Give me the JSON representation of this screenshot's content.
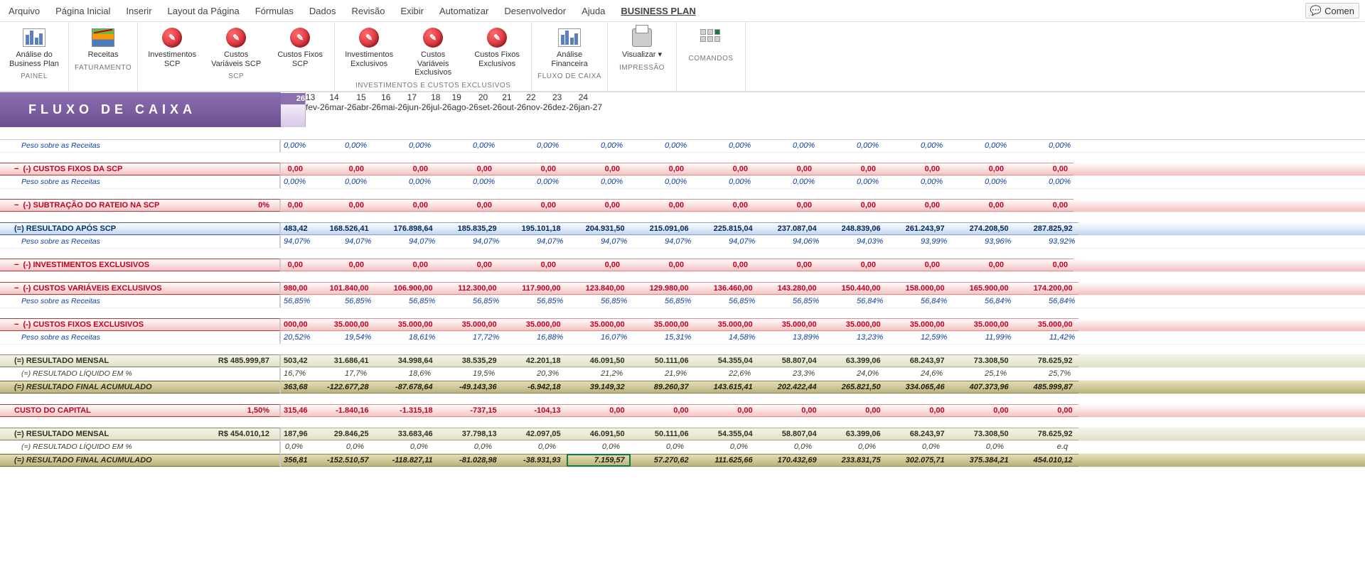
{
  "menu": {
    "items": [
      "Arquivo",
      "Página Inicial",
      "Inserir",
      "Layout da Página",
      "Fórmulas",
      "Dados",
      "Revisão",
      "Exibir",
      "Automatizar",
      "Desenvolvedor",
      "Ajuda",
      "BUSINESS PLAN"
    ],
    "active_index": 11,
    "comment_btn": "Comen"
  },
  "ribbon": {
    "groups": [
      {
        "label": "PAINEL",
        "buttons": [
          {
            "label": "Análise do Business Plan",
            "icon": "analyze-icon"
          }
        ]
      },
      {
        "label": "FATURAMENTO",
        "buttons": [
          {
            "label": "Receitas",
            "icon": "chart-icon"
          }
        ]
      },
      {
        "label": "SCP",
        "buttons": [
          {
            "label": "Investimentos SCP",
            "icon": "red-icon",
            "glyph": "📋"
          },
          {
            "label": "Custos Variáveis SCP",
            "icon": "red-icon",
            "glyph": "📋"
          },
          {
            "label": "Custos Fixos SCP",
            "icon": "red-icon",
            "glyph": "📋"
          }
        ]
      },
      {
        "label": "INVESTIMENTOS E CUSTOS EXCLUSIVOS",
        "buttons": [
          {
            "label": "Investimentos Exclusivos",
            "icon": "red-icon",
            "glyph": "📋"
          },
          {
            "label": "Custos Variáveis Exclusivos",
            "icon": "red-icon",
            "glyph": "📋"
          },
          {
            "label": "Custos Fixos Exclusivos",
            "icon": "red-icon",
            "glyph": "📋"
          }
        ]
      },
      {
        "label": "FLUXO DE CAIXA",
        "buttons": [
          {
            "label": "Análise Financeira",
            "icon": "analyze-icon"
          }
        ]
      },
      {
        "label": "IMPRESSÃO",
        "buttons": [
          {
            "label": "Visualizar ▾",
            "icon": "print-icon"
          }
        ]
      },
      {
        "label": "COMANDOS",
        "buttons": [
          {
            "label": "",
            "icon": "cmd-icon"
          }
        ]
      }
    ]
  },
  "banner": "FLUXO DE CAIXA",
  "columns": {
    "partial": {
      "num": "",
      "mon": "26"
    },
    "cols": [
      {
        "num": "13",
        "mon": "fev-26"
      },
      {
        "num": "14",
        "mon": "mar-26"
      },
      {
        "num": "15",
        "mon": "abr-26"
      },
      {
        "num": "16",
        "mon": "mai-26"
      },
      {
        "num": "17",
        "mon": "jun-26"
      },
      {
        "num": "18",
        "mon": "jul-26"
      },
      {
        "num": "19",
        "mon": "ago-26"
      },
      {
        "num": "20",
        "mon": "set-26"
      },
      {
        "num": "21",
        "mon": "out-26"
      },
      {
        "num": "22",
        "mon": "nov-26"
      },
      {
        "num": "23",
        "mon": "dez-26"
      },
      {
        "num": "24",
        "mon": "jan-27"
      }
    ]
  },
  "rows": [
    {
      "type": "sub-italic",
      "label": "Peso sobre as Receitas",
      "partial": "0,00%",
      "cells": [
        "0,00%",
        "0,00%",
        "0,00%",
        "0,00%",
        "0,00%",
        "0,00%",
        "0,00%",
        "0,00%",
        "0,00%",
        "0,00%",
        "0,00%",
        "0,00%"
      ]
    },
    {
      "type": "spacer"
    },
    {
      "type": "red-band",
      "collapse": true,
      "label": "(-) CUSTOS FIXOS DA SCP",
      "partial": "0,00",
      "cells": [
        "0,00",
        "0,00",
        "0,00",
        "0,00",
        "0,00",
        "0,00",
        "0,00",
        "0,00",
        "0,00",
        "0,00",
        "0,00",
        "0,00"
      ]
    },
    {
      "type": "sub-italic",
      "label": "Peso sobre as Receitas",
      "partial": "0,00%",
      "cells": [
        "0,00%",
        "0,00%",
        "0,00%",
        "0,00%",
        "0,00%",
        "0,00%",
        "0,00%",
        "0,00%",
        "0,00%",
        "0,00%",
        "0,00%",
        "0,00%"
      ]
    },
    {
      "type": "spacer"
    },
    {
      "type": "red-band",
      "collapse": true,
      "label": "(-) SUBTRAÇÃO DO RATEIO NA SCP",
      "extra": "0%",
      "partial": "0,00",
      "cells": [
        "0,00",
        "0,00",
        "0,00",
        "0,00",
        "0,00",
        "0,00",
        "0,00",
        "0,00",
        "0,00",
        "0,00",
        "0,00",
        "0,00"
      ]
    },
    {
      "type": "spacer"
    },
    {
      "type": "blue-band",
      "label": "(=) RESULTADO APÓS SCP",
      "partial": "483,42",
      "cells": [
        "168.526,41",
        "176.898,64",
        "185.835,29",
        "195.101,18",
        "204.931,50",
        "215.091,06",
        "225.815,04",
        "237.087,04",
        "248.839,06",
        "261.243,97",
        "274.208,50",
        "287.825,92"
      ]
    },
    {
      "type": "sub-italic",
      "label": "Peso sobre as Receitas",
      "partial": "94,07%",
      "cells": [
        "94,07%",
        "94,07%",
        "94,07%",
        "94,07%",
        "94,07%",
        "94,07%",
        "94,07%",
        "94,06%",
        "94,03%",
        "93,99%",
        "93,96%",
        "93,92%"
      ]
    },
    {
      "type": "spacer"
    },
    {
      "type": "red-band",
      "collapse": true,
      "label": "(-) INVESTIMENTOS EXCLUSIVOS",
      "partial": "0,00",
      "cells": [
        "0,00",
        "0,00",
        "0,00",
        "0,00",
        "0,00",
        "0,00",
        "0,00",
        "0,00",
        "0,00",
        "0,00",
        "0,00",
        "0,00"
      ]
    },
    {
      "type": "spacer"
    },
    {
      "type": "red-band",
      "collapse": true,
      "label": "(-) CUSTOS VARIÁVEIS EXCLUSIVOS",
      "partial": "980,00",
      "cells": [
        "101.840,00",
        "106.900,00",
        "112.300,00",
        "117.900,00",
        "123.840,00",
        "129.980,00",
        "136.460,00",
        "143.280,00",
        "150.440,00",
        "158.000,00",
        "165.900,00",
        "174.200,00"
      ]
    },
    {
      "type": "sub-italic",
      "label": "Peso sobre as Receitas",
      "partial": "56,85%",
      "cells": [
        "56,85%",
        "56,85%",
        "56,85%",
        "56,85%",
        "56,85%",
        "56,85%",
        "56,85%",
        "56,85%",
        "56,84%",
        "56,84%",
        "56,84%",
        "56,84%"
      ]
    },
    {
      "type": "spacer"
    },
    {
      "type": "red-band",
      "collapse": true,
      "label": "(-) CUSTOS FIXOS EXCLUSIVOS",
      "partial": "000,00",
      "cells": [
        "35.000,00",
        "35.000,00",
        "35.000,00",
        "35.000,00",
        "35.000,00",
        "35.000,00",
        "35.000,00",
        "35.000,00",
        "35.000,00",
        "35.000,00",
        "35.000,00",
        "35.000,00"
      ]
    },
    {
      "type": "sub-italic",
      "label": "Peso sobre as Receitas",
      "partial": "20,52%",
      "cells": [
        "19,54%",
        "18,61%",
        "17,72%",
        "16,88%",
        "16,07%",
        "15,31%",
        "14,58%",
        "13,89%",
        "13,23%",
        "12,59%",
        "11,99%",
        "11,42%"
      ]
    },
    {
      "type": "spacer"
    },
    {
      "type": "gray-band",
      "label": "(=) RESULTADO MENSAL",
      "extra": "R$    485.999,87",
      "partial": "503,42",
      "cells": [
        "31.686,41",
        "34.998,64",
        "38.535,29",
        "42.201,18",
        "46.091,50",
        "50.111,06",
        "54.355,04",
        "58.807,04",
        "63.399,06",
        "68.243,97",
        "73.308,50",
        "78.625,92"
      ]
    },
    {
      "type": "sub-italic-k",
      "label": "(=) RESULTADO LÍQUIDO EM %",
      "partial": "16,7%",
      "cells": [
        "17,7%",
        "18,6%",
        "19,5%",
        "20,3%",
        "21,2%",
        "21,9%",
        "22,6%",
        "23,3%",
        "24,0%",
        "24,6%",
        "25,1%",
        "25,7%"
      ]
    },
    {
      "type": "olive-band",
      "label": "(=) RESULTADO FINAL ACUMULADO",
      "partial": "363,68",
      "cells": [
        "-122.677,28",
        "-87.678,64",
        "-49.143,36",
        "-6.942,18",
        "39.149,32",
        "89.260,37",
        "143.615,41",
        "202.422,44",
        "265.821,50",
        "334.065,46",
        "407.373,96",
        "485.999,87"
      ]
    },
    {
      "type": "spacer"
    },
    {
      "type": "red-band",
      "label": "CUSTO DO CAPITAL",
      "extra": "1,50%",
      "partial": "315,46",
      "cells": [
        "-1.840,16",
        "-1.315,18",
        "-737,15",
        "-104,13",
        "0,00",
        "0,00",
        "0,00",
        "0,00",
        "0,00",
        "0,00",
        "0,00",
        "0,00"
      ]
    },
    {
      "type": "spacer"
    },
    {
      "type": "gray-band",
      "label": "(=) RESULTADO MENSAL",
      "extra": "R$       454.010,12",
      "partial": "187,96",
      "cells": [
        "29.846,25",
        "33.683,46",
        "37.798,13",
        "42.097,05",
        "46.091,50",
        "50.111,06",
        "54.355,04",
        "58.807,04",
        "63.399,06",
        "68.243,97",
        "73.308,50",
        "78.625,92"
      ]
    },
    {
      "type": "sub-italic-k",
      "label": "(=) RESULTADO LÍQUIDO EM %",
      "partial": "0,0%",
      "cells": [
        "0,0%",
        "0,0%",
        "0,0%",
        "0,0%",
        "0,0%",
        "0,0%",
        "0,0%",
        "0,0%",
        "0,0%",
        "0,0%",
        "0,0%",
        "e.q"
      ]
    },
    {
      "type": "olive-band",
      "label": "(=) RESULTADO FINAL ACUMULADO",
      "selected": 5,
      "partial": "356,81",
      "cells": [
        "-152.510,57",
        "-118.827,11",
        "-81.028,98",
        "-38.931,93",
        "7.159,57",
        "57.270,62",
        "111.625,66",
        "170.432,69",
        "233.831,75",
        "302.075,71",
        "375.384,21",
        "454.010,12"
      ]
    }
  ],
  "colors": {
    "banner_bg": "#6b4f8f",
    "red": "#c00020",
    "blue": "#003070",
    "olive": "#908850"
  }
}
